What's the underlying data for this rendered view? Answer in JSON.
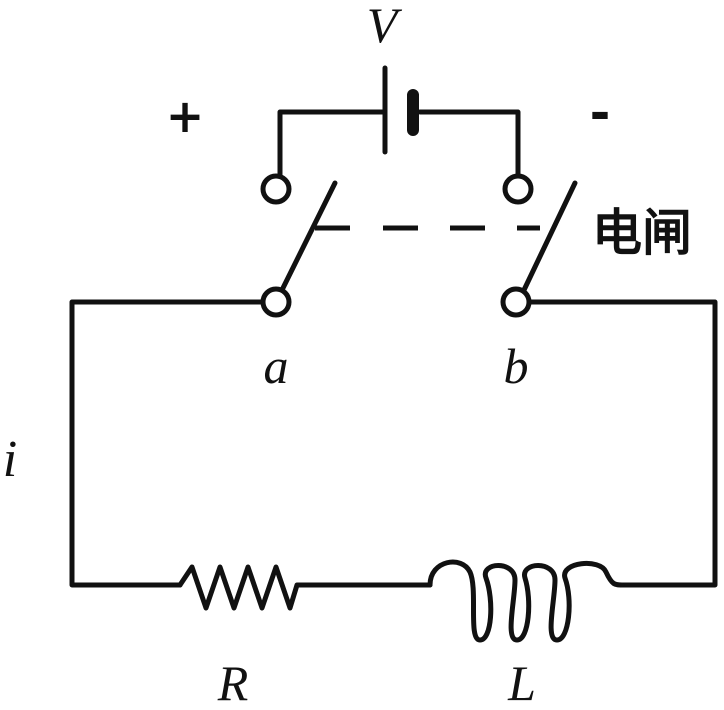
{
  "labels": {
    "voltage": "V",
    "plus": "+",
    "minus": "-",
    "switch": "电闸",
    "terminal_a": "a",
    "terminal_b": "b",
    "current": "i",
    "resistor": "R",
    "inductor": "L"
  }
}
